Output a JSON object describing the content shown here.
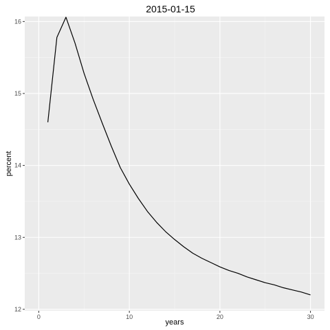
{
  "chart_data": {
    "type": "line",
    "title": "2015-01-15",
    "xlabel": "years",
    "ylabel": "percent",
    "xlim": [
      0,
      30
    ],
    "ylim": [
      12,
      16.05
    ],
    "x_ticks": [
      0,
      10,
      20,
      30
    ],
    "y_ticks": [
      12,
      13,
      14,
      15,
      16
    ],
    "grid": true,
    "legend": "none",
    "colors": {
      "panel": "#ebebeb",
      "grid_major": "#ffffff",
      "line": "#000000",
      "tick_text": "#4d4d4d"
    },
    "series": [
      {
        "x": [
          1,
          2,
          3,
          4,
          5,
          6,
          7,
          8,
          9,
          10,
          11,
          12,
          13,
          14,
          15,
          16,
          17,
          18,
          19,
          20,
          21,
          22,
          23,
          24,
          25,
          26,
          27,
          28,
          29,
          30
        ],
        "y": [
          14.6,
          15.78,
          16.06,
          15.7,
          15.28,
          14.92,
          14.59,
          14.27,
          13.97,
          13.74,
          13.54,
          13.36,
          13.21,
          13.08,
          12.97,
          12.87,
          12.78,
          12.71,
          12.65,
          12.59,
          12.54,
          12.5,
          12.45,
          12.41,
          12.37,
          12.34,
          12.3,
          12.27,
          12.24,
          12.2
        ]
      }
    ]
  }
}
